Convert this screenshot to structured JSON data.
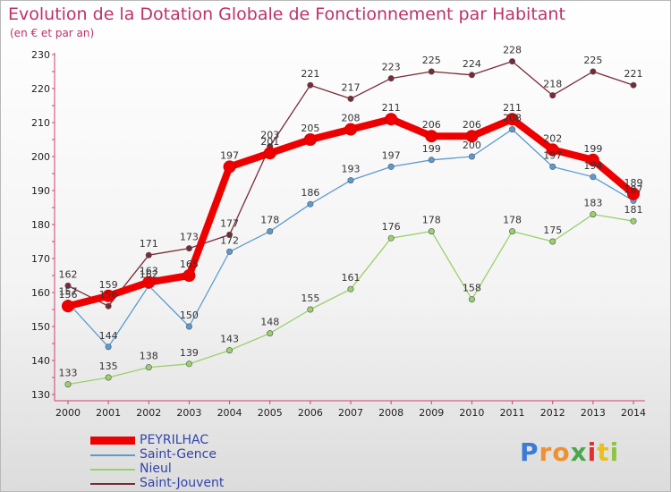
{
  "chart_data": {
    "type": "line",
    "title": "Evolution de la Dotation Globale de Fonctionnement par Habitant",
    "subtitle": "(en € et par an)",
    "xlabel": "",
    "ylabel": "",
    "x": [
      "2000",
      "2001",
      "2002",
      "2003",
      "2004",
      "2005",
      "2006",
      "2007",
      "2008",
      "2009",
      "2010",
      "2011",
      "2012",
      "2013",
      "2014"
    ],
    "ylim": [
      130,
      230
    ],
    "yticks": [
      130,
      140,
      150,
      160,
      170,
      180,
      190,
      200,
      210,
      220,
      230
    ],
    "grid": false,
    "legend_position": "bottom-left",
    "series": [
      {
        "name": "Saint-Jouvent",
        "color": "#7a2a36",
        "values": [
          162,
          156,
          171,
          173,
          177,
          203,
          221,
          217,
          223,
          225,
          224,
          228,
          218,
          225,
          221
        ],
        "labels": [
          "162",
          "156",
          "171",
          "173",
          "177",
          "203",
          "221",
          "217",
          "223",
          "225",
          "224",
          "228",
          "218",
          "225",
          "221"
        ]
      },
      {
        "name": "Nieul",
        "color": "#99d16a",
        "values": [
          133,
          135,
          138,
          139,
          143,
          148,
          155,
          161,
          176,
          178,
          158,
          178,
          175,
          183,
          181
        ],
        "labels": [
          "133",
          "135",
          "138",
          "139",
          "143",
          "148",
          "155",
          "161",
          "176",
          "178",
          "158",
          "178",
          "175",
          "183",
          "181"
        ]
      },
      {
        "name": "Saint-Gence",
        "color": "#5b9bd0",
        "values": [
          157,
          144,
          162,
          150,
          172,
          178,
          186,
          193,
          197,
          199,
          200,
          208,
          197,
          194,
          187
        ],
        "labels": [
          "157",
          "144",
          "162",
          "150",
          "172",
          "178",
          "186",
          "193",
          "197",
          "199",
          "200",
          "208",
          "197",
          "194",
          "187"
        ]
      },
      {
        "name": "PEYRILHAC",
        "color": "#ee0000",
        "values": [
          156,
          159,
          163,
          165,
          197,
          201,
          205,
          208,
          211,
          206,
          206,
          211,
          202,
          199,
          189
        ],
        "labels": [
          "156",
          "159",
          "163",
          "165",
          "197",
          "201",
          "205",
          "208",
          "211",
          "206",
          "206",
          "211",
          "202",
          "199",
          "189"
        ]
      }
    ]
  },
  "legend": {
    "items": [
      {
        "label": "PEYRILHAC",
        "color": "#ee0000"
      },
      {
        "label": "Saint-Gence",
        "color": "#5b9bd0"
      },
      {
        "label": "Nieul",
        "color": "#99d16a"
      },
      {
        "label": "Saint-Jouvent",
        "color": "#7a2a36"
      }
    ]
  },
  "logo": {
    "letters": [
      "P",
      "r",
      "o",
      "x",
      "i",
      "t",
      "i"
    ],
    "colors": [
      "#3a7bd5",
      "#f09030",
      "#f09030",
      "#4aa84a",
      "#e03030",
      "#e8c020",
      "#8cc63f"
    ]
  }
}
